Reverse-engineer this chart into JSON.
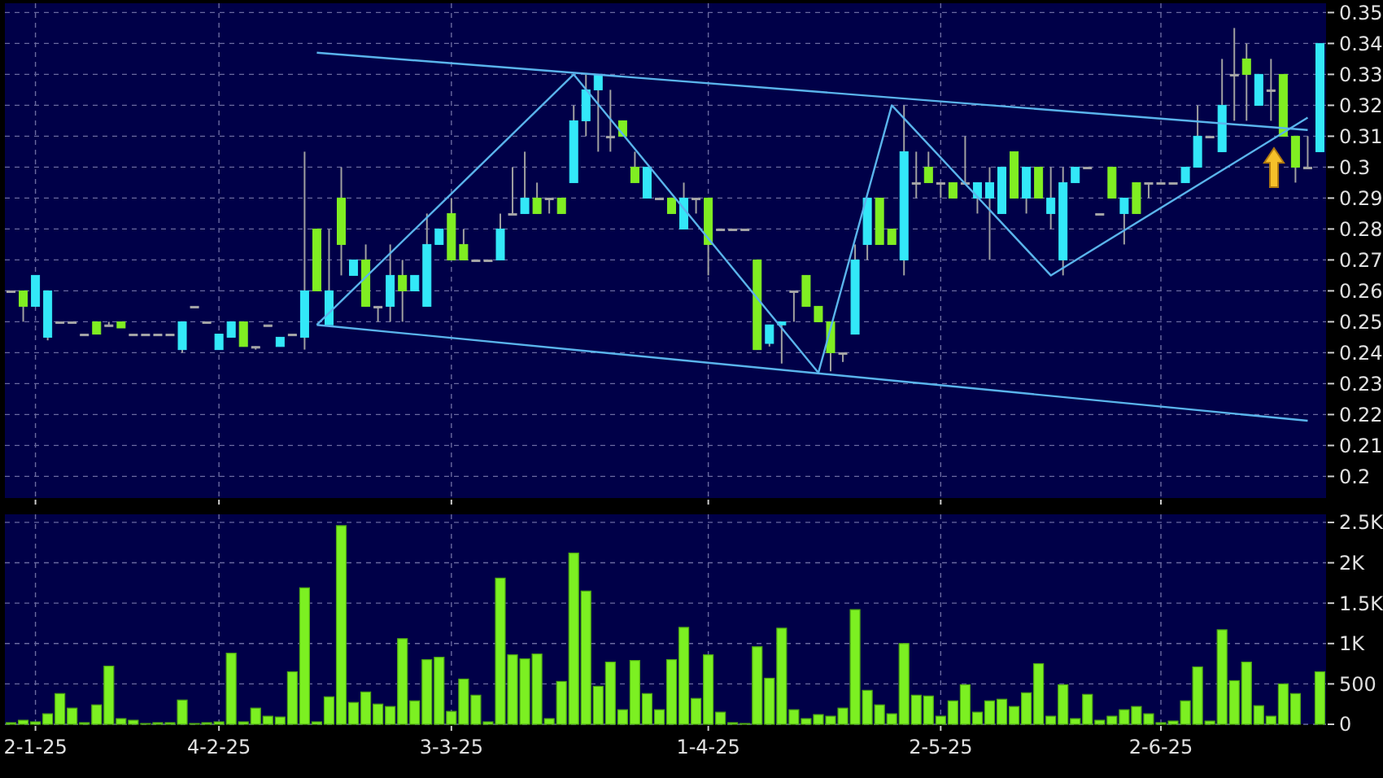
{
  "chart_data": [
    {
      "type": "candlestick",
      "categories": [
        null,
        null,
        null,
        null,
        null,
        null,
        null,
        null,
        null,
        null,
        null,
        null,
        null,
        null,
        null,
        null,
        null,
        null,
        null,
        null,
        null,
        null,
        null,
        null,
        null,
        null,
        null,
        null,
        null,
        null,
        null,
        null,
        null,
        null,
        null,
        null,
        null,
        null,
        null,
        null,
        null,
        null,
        null,
        null,
        null,
        null,
        null,
        null,
        null,
        null,
        null,
        null,
        null,
        null,
        null,
        null,
        null,
        null,
        null,
        null,
        null,
        null,
        null,
        null,
        null,
        null,
        null,
        null,
        null,
        null,
        null,
        null,
        null,
        null,
        null,
        null,
        null,
        null,
        null,
        null,
        null,
        null,
        null,
        null,
        null,
        null,
        null,
        null,
        null,
        null,
        null,
        null,
        null,
        null,
        null,
        null,
        null,
        null,
        null,
        null,
        null,
        null,
        null,
        null,
        null,
        null,
        null,
        null
      ],
      "ohlc": [
        [
          0.26,
          0.26,
          0.26,
          0.26
        ],
        [
          0.26,
          0.26,
          0.25,
          0.255
        ],
        [
          0.255,
          0.265,
          0.255,
          0.265
        ],
        [
          0.245,
          0.26,
          0.244,
          0.26
        ],
        [
          0.25,
          0.25,
          0.25,
          0.25
        ],
        [
          0.25,
          0.25,
          0.25,
          0.25
        ],
        [
          0.246,
          0.246,
          0.246,
          0.246
        ],
        [
          0.25,
          0.25,
          0.246,
          0.246
        ],
        [
          0.249,
          0.25,
          0.249,
          0.249
        ],
        [
          0.25,
          0.25,
          0.248,
          0.248
        ],
        [
          0.246,
          0.246,
          0.246,
          0.246
        ],
        [
          0.246,
          0.246,
          0.246,
          0.246
        ],
        [
          0.246,
          0.246,
          0.246,
          0.246
        ],
        [
          0.246,
          0.246,
          0.246,
          0.246
        ],
        [
          0.241,
          0.25,
          0.24,
          0.25
        ],
        [
          0.255,
          0.255,
          0.255,
          0.255
        ],
        [
          0.25,
          0.25,
          0.25,
          0.25
        ],
        [
          0.241,
          0.246,
          0.241,
          0.246
        ],
        [
          0.245,
          0.25,
          0.245,
          0.25
        ],
        [
          0.25,
          0.25,
          0.242,
          0.242
        ],
        [
          0.242,
          0.242,
          0.241,
          0.242
        ],
        [
          0.249,
          0.249,
          0.249,
          0.249
        ],
        [
          0.242,
          0.245,
          0.242,
          0.245
        ],
        [
          0.246,
          0.246,
          0.246,
          0.246
        ],
        [
          0.245,
          0.305,
          0.241,
          0.26
        ],
        [
          0.28,
          0.28,
          0.26,
          0.26
        ],
        [
          0.249,
          0.28,
          0.249,
          0.26
        ],
        [
          0.29,
          0.3,
          0.265,
          0.275
        ],
        [
          0.265,
          0.27,
          0.265,
          0.27
        ],
        [
          0.27,
          0.275,
          0.255,
          0.255
        ],
        [
          0.255,
          0.255,
          0.25,
          0.255
        ],
        [
          0.255,
          0.275,
          0.25,
          0.265
        ],
        [
          0.265,
          0.27,
          0.25,
          0.26
        ],
        [
          0.26,
          0.265,
          0.26,
          0.265
        ],
        [
          0.255,
          0.285,
          0.255,
          0.275
        ],
        [
          0.275,
          0.28,
          0.275,
          0.28
        ],
        [
          0.285,
          0.29,
          0.27,
          0.27
        ],
        [
          0.275,
          0.28,
          0.27,
          0.27
        ],
        [
          0.27,
          0.27,
          0.27,
          0.27
        ],
        [
          0.27,
          0.27,
          0.27,
          0.27
        ],
        [
          0.27,
          0.285,
          0.27,
          0.28
        ],
        [
          0.285,
          0.3,
          0.285,
          0.285
        ],
        [
          0.285,
          0.305,
          0.285,
          0.29
        ],
        [
          0.29,
          0.295,
          0.285,
          0.285
        ],
        [
          0.29,
          0.29,
          0.285,
          0.29
        ],
        [
          0.29,
          0.29,
          0.285,
          0.285
        ],
        [
          0.295,
          0.32,
          0.295,
          0.315
        ],
        [
          0.315,
          0.33,
          0.31,
          0.325
        ],
        [
          0.325,
          0.33,
          0.305,
          0.33
        ],
        [
          0.31,
          0.325,
          0.305,
          0.31
        ],
        [
          0.315,
          0.315,
          0.31,
          0.31
        ],
        [
          0.3,
          0.305,
          0.295,
          0.295
        ],
        [
          0.29,
          0.3,
          0.29,
          0.3
        ],
        [
          0.29,
          0.29,
          0.29,
          0.29
        ],
        [
          0.29,
          0.29,
          0.285,
          0.285
        ],
        [
          0.28,
          0.295,
          0.28,
          0.29
        ],
        [
          0.29,
          0.29,
          0.285,
          0.29
        ],
        [
          0.29,
          0.29,
          0.265,
          0.275
        ],
        [
          0.28,
          0.28,
          0.28,
          0.28
        ],
        [
          0.28,
          0.28,
          0.28,
          0.28
        ],
        [
          0.28,
          0.28,
          0.28,
          0.28
        ],
        [
          0.27,
          0.27,
          0.241,
          0.241
        ],
        [
          0.243,
          0.249,
          0.242,
          0.249
        ],
        [
          0.249,
          0.25,
          0.2365,
          0.25
        ],
        [
          0.26,
          0.26,
          0.25,
          0.26
        ],
        [
          0.265,
          0.265,
          0.255,
          0.255
        ],
        [
          0.255,
          0.255,
          0.25,
          0.25
        ],
        [
          0.25,
          0.25,
          0.234,
          0.24
        ],
        [
          0.24,
          0.24,
          0.237,
          0.24
        ],
        [
          0.246,
          0.275,
          0.246,
          0.27
        ],
        [
          0.275,
          0.29,
          0.27,
          0.29
        ],
        [
          0.29,
          0.29,
          0.275,
          0.275
        ],
        [
          0.28,
          0.28,
          0.275,
          0.275
        ],
        [
          0.27,
          0.32,
          0.265,
          0.305
        ],
        [
          0.295,
          0.305,
          0.29,
          0.295
        ],
        [
          0.3,
          0.305,
          0.295,
          0.295
        ],
        [
          0.295,
          0.295,
          0.29,
          0.295
        ],
        [
          0.295,
          0.295,
          0.29,
          0.29
        ],
        [
          0.295,
          0.31,
          0.295,
          0.295
        ],
        [
          0.29,
          0.295,
          0.285,
          0.295
        ],
        [
          0.29,
          0.3,
          0.27,
          0.295
        ],
        [
          0.285,
          0.3,
          0.285,
          0.3
        ],
        [
          0.305,
          0.305,
          0.29,
          0.29
        ],
        [
          0.29,
          0.3,
          0.285,
          0.3
        ],
        [
          0.3,
          0.3,
          0.29,
          0.29
        ],
        [
          0.285,
          0.3,
          0.28,
          0.29
        ],
        [
          0.27,
          0.3,
          0.265,
          0.295
        ],
        [
          0.295,
          0.3,
          0.295,
          0.3
        ],
        [
          0.3,
          0.3,
          0.3,
          0.3
        ],
        [
          0.285,
          0.285,
          0.285,
          0.285
        ],
        [
          0.3,
          0.3,
          0.29,
          0.29
        ],
        [
          0.285,
          0.29,
          0.275,
          0.29
        ],
        [
          0.295,
          0.295,
          0.285,
          0.285
        ],
        [
          0.295,
          0.295,
          0.29,
          0.295
        ],
        [
          0.295,
          0.295,
          0.295,
          0.295
        ],
        [
          0.295,
          0.295,
          0.295,
          0.295
        ],
        [
          0.295,
          0.3,
          0.295,
          0.3
        ],
        [
          0.3,
          0.32,
          0.3,
          0.31
        ],
        [
          0.31,
          0.31,
          0.31,
          0.31
        ],
        [
          0.305,
          0.335,
          0.305,
          0.32
        ],
        [
          0.33,
          0.345,
          0.315,
          0.33
        ],
        [
          0.335,
          0.34,
          0.315,
          0.33
        ],
        [
          0.32,
          0.33,
          0.32,
          0.33
        ],
        [
          0.325,
          0.335,
          0.315,
          0.325
        ],
        [
          0.33,
          0.33,
          0.31,
          0.31
        ],
        [
          0.31,
          0.31,
          0.295,
          0.3
        ],
        [
          0.3,
          0.31,
          0.3,
          0.3
        ],
        [
          0.305,
          0.34,
          0.305,
          0.34
        ]
      ],
      "colors": [
        "#a8a8a8",
        "#80ee22",
        "#33e8f8",
        "#33e8f8",
        "#a8a8a8",
        "#a8a8a8",
        "#a8a8a8",
        "#80ee22",
        "#a8a8a8",
        "#80ee22",
        "#a8a8a8",
        "#a8a8a8",
        "#a8a8a8",
        "#a8a8a8",
        "#33e8f8",
        "#a8a8a8",
        "#a8a8a8",
        "#33e8f8",
        "#33e8f8",
        "#80ee22",
        "#a8a8a8",
        "#a8a8a8",
        "#33e8f8",
        "#a8a8a8",
        "#33e8f8",
        "#80ee22",
        "#33e8f8",
        "#80ee22",
        "#33e8f8",
        "#80ee22",
        "#a8a8a8",
        "#33e8f8",
        "#80ee22",
        "#33e8f8",
        "#33e8f8",
        "#33e8f8",
        "#80ee22",
        "#80ee22",
        "#a8a8a8",
        "#a8a8a8",
        "#33e8f8",
        "#a8a8a8",
        "#33e8f8",
        "#80ee22",
        "#a8a8a8",
        "#80ee22",
        "#33e8f8",
        "#33e8f8",
        "#33e8f8",
        "#a8a8a8",
        "#80ee22",
        "#80ee22",
        "#33e8f8",
        "#a8a8a8",
        "#80ee22",
        "#33e8f8",
        "#a8a8a8",
        "#80ee22",
        "#a8a8a8",
        "#a8a8a8",
        "#a8a8a8",
        "#80ee22",
        "#33e8f8",
        "#33e8f8",
        "#a8a8a8",
        "#80ee22",
        "#80ee22",
        "#80ee22",
        "#a8a8a8",
        "#33e8f8",
        "#33e8f8",
        "#80ee22",
        "#80ee22",
        "#33e8f8",
        "#a8a8a8",
        "#80ee22",
        "#a8a8a8",
        "#80ee22",
        "#a8a8a8",
        "#33e8f8",
        "#33e8f8",
        "#33e8f8",
        "#80ee22",
        "#33e8f8",
        "#80ee22",
        "#33e8f8",
        "#33e8f8",
        "#33e8f8",
        "#a8a8a8",
        "#a8a8a8",
        "#80ee22",
        "#33e8f8",
        "#80ee22",
        "#a8a8a8",
        "#a8a8a8",
        "#a8a8a8",
        "#33e8f8",
        "#33e8f8",
        "#a8a8a8",
        "#33e8f8",
        "#a8a8a8",
        "#80ee22",
        "#33e8f8",
        "#a8a8a8",
        "#80ee22",
        "#80ee22",
        "#a8a8a8",
        "#33e8f8"
      ],
      "series": [
        {
          "type": "line",
          "color": "#5ab4ec",
          "values": [
            null,
            null,
            null,
            null,
            null,
            null,
            null,
            null,
            null,
            null,
            null,
            null,
            null,
            null,
            null,
            null,
            null,
            null,
            null,
            null,
            null,
            null,
            null,
            null,
            null,
            0.337,
            null,
            null,
            null,
            null,
            null,
            null,
            null,
            null,
            null,
            null,
            null,
            null,
            null,
            null,
            null,
            null,
            null,
            null,
            null,
            null,
            null,
            null,
            null,
            null,
            null,
            null,
            null,
            null,
            null,
            null,
            null,
            null,
            null,
            null,
            null,
            null,
            null,
            null,
            null,
            null,
            null,
            null,
            null,
            null,
            null,
            null,
            null,
            null,
            null,
            null,
            null,
            null,
            null,
            null,
            null,
            null,
            null,
            null,
            null,
            null,
            null,
            null,
            null,
            null,
            null,
            null,
            null,
            null,
            null,
            null,
            null,
            null,
            null,
            null,
            null,
            null,
            null,
            null,
            null,
            null,
            0.312,
            null
          ]
        },
        {
          "type": "line",
          "color": "#5ab4ec",
          "values": [
            null,
            null,
            null,
            null,
            null,
            null,
            null,
            null,
            null,
            null,
            null,
            null,
            null,
            null,
            null,
            null,
            null,
            null,
            null,
            null,
            null,
            null,
            null,
            null,
            null,
            0.249,
            null,
            null,
            null,
            null,
            null,
            null,
            null,
            null,
            null,
            null,
            null,
            null,
            null,
            null,
            null,
            null,
            null,
            null,
            null,
            null,
            null,
            null,
            null,
            null,
            null,
            null,
            null,
            null,
            null,
            null,
            null,
            null,
            null,
            null,
            null,
            null,
            null,
            null,
            null,
            null,
            null,
            null,
            null,
            null,
            null,
            null,
            null,
            null,
            null,
            null,
            null,
            null,
            null,
            null,
            null,
            null,
            null,
            null,
            null,
            null,
            null,
            null,
            null,
            null,
            null,
            null,
            null,
            null,
            null,
            null,
            null,
            null,
            null,
            null,
            null,
            null,
            null,
            null,
            null,
            null,
            0.218,
            null
          ]
        },
        {
          "type": "line",
          "color": "#5ab4ec",
          "values": [
            null,
            null,
            null,
            null,
            null,
            null,
            null,
            null,
            null,
            null,
            null,
            null,
            null,
            null,
            null,
            null,
            null,
            null,
            null,
            null,
            null,
            null,
            null,
            null,
            null,
            0.249,
            null,
            null,
            null,
            null,
            null,
            null,
            null,
            null,
            null,
            null,
            null,
            null,
            null,
            null,
            null,
            null,
            null,
            null,
            null,
            null,
            0.33,
            null,
            null,
            null,
            null,
            null,
            null,
            null,
            null,
            null,
            null,
            null,
            null,
            null,
            null,
            null,
            null,
            null,
            null,
            null,
            0.2335,
            null,
            null,
            null,
            null,
            null,
            0.32,
            null,
            null,
            null,
            null,
            null,
            null,
            null,
            null,
            null,
            null,
            null,
            null,
            0.265,
            null,
            null,
            null,
            null,
            null,
            null,
            null,
            null,
            null,
            null,
            null,
            null,
            null,
            null,
            null,
            null,
            null,
            null,
            null,
            null,
            0.316,
            null
          ]
        }
      ],
      "ylim": [
        0.193,
        0.353
      ],
      "yticks": [
        0.2,
        0.21,
        0.22,
        0.23,
        0.24,
        0.25,
        0.26,
        0.27,
        0.28,
        0.29,
        0.3,
        0.31,
        0.32,
        0.33,
        0.34,
        0.35
      ],
      "grid": true,
      "tick_labels": "y"
    },
    {
      "type": "bar",
      "categories": [
        null,
        null,
        "2-1-25",
        null,
        null,
        null,
        null,
        null,
        null,
        null,
        null,
        null,
        null,
        null,
        null,
        null,
        null,
        "4-2-25",
        null,
        null,
        null,
        null,
        null,
        null,
        null,
        null,
        null,
        null,
        null,
        null,
        null,
        null,
        null,
        null,
        null,
        null,
        "3-3-25",
        null,
        null,
        null,
        null,
        null,
        null,
        null,
        null,
        null,
        null,
        null,
        null,
        null,
        null,
        null,
        null,
        null,
        null,
        null,
        null,
        "1-4-25",
        null,
        null,
        null,
        null,
        null,
        null,
        null,
        null,
        null,
        null,
        null,
        null,
        null,
        null,
        null,
        null,
        null,
        null,
        "2-5-25",
        null,
        null,
        null,
        null,
        null,
        null,
        null,
        null,
        null,
        null,
        null,
        null,
        null,
        null,
        null,
        null,
        null,
        "2-6-25",
        null,
        null,
        null,
        null,
        null,
        null,
        null,
        null,
        null,
        null,
        null,
        null,
        null
      ],
      "values": [
        20,
        50,
        30,
        130,
        380,
        200,
        20,
        240,
        720,
        70,
        50,
        10,
        20,
        20,
        300,
        10,
        20,
        30,
        880,
        30,
        200,
        100,
        90,
        650,
        1690,
        30,
        340,
        2460,
        270,
        400,
        250,
        220,
        1060,
        290,
        800,
        830,
        160,
        560,
        360,
        30,
        1810,
        860,
        810,
        870,
        70,
        530,
        2120,
        1650,
        470,
        770,
        180,
        790,
        380,
        180,
        800,
        1200,
        320,
        860,
        150,
        20,
        10,
        960,
        570,
        1190,
        180,
        70,
        120,
        100,
        200,
        1420,
        420,
        240,
        130,
        1000,
        360,
        350,
        100,
        290,
        490,
        150,
        290,
        310,
        220,
        390,
        750,
        100,
        490,
        70,
        370,
        50,
        100,
        180,
        220,
        130,
        20,
        40,
        290,
        710,
        40,
        1170,
        540,
        770,
        230,
        100,
        500,
        380,
        0,
        650
      ],
      "color": "#7cf022",
      "ylim": [
        0,
        2600
      ],
      "yticks": [
        0,
        500,
        {
          "value": 1000,
          "label": "1K"
        },
        {
          "value": 1500,
          "label": "1.5K"
        },
        {
          "value": 2000,
          "label": "2K"
        },
        {
          "value": 2500,
          "label": "2.5K"
        }
      ],
      "grid": true
    }
  ]
}
